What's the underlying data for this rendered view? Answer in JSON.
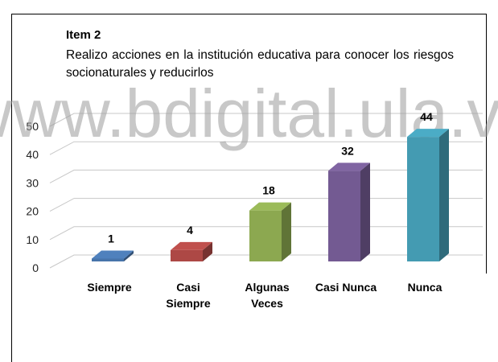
{
  "chart_data": {
    "type": "bar3d",
    "title": "Item 2",
    "subtitle": "Realizo acciones en la institución educativa para conocer los riesgos socionaturales y reducirlos",
    "watermark": "www.bdigital.ula.ve",
    "categories": [
      "Siempre",
      "Casi Siempre",
      "Algunas Veces",
      "Casi Nunca",
      "Nunca"
    ],
    "values": [
      1,
      4,
      18,
      32,
      44
    ],
    "colors": [
      "#4f81bd",
      "#c0504d",
      "#9bbb59",
      "#8064a2",
      "#4bacc6"
    ],
    "ylim": [
      0,
      50
    ],
    "yticks": [
      0,
      10,
      20,
      30,
      40,
      50
    ],
    "grid": true
  }
}
